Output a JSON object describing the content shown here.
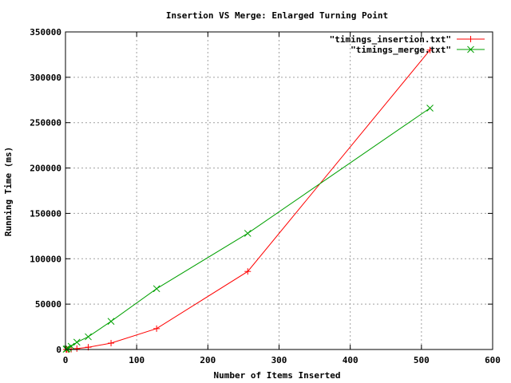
{
  "chart_data": {
    "type": "line",
    "title": "Insertion VS Merge: Enlarged Turning Point",
    "xlabel": "Number of Items Inserted",
    "ylabel": "Running Time (ms)",
    "xlim": [
      0,
      600
    ],
    "ylim": [
      0,
      350000
    ],
    "xticks": [
      0,
      100,
      200,
      300,
      400,
      500,
      600
    ],
    "yticks": [
      0,
      50000,
      100000,
      150000,
      200000,
      250000,
      300000,
      350000
    ],
    "grid": true,
    "legend_position": "top-right",
    "series": [
      {
        "name": "\"timings_insertion.txt\"",
        "color": "#ff0000",
        "marker": "plus",
        "x": [
          1,
          2,
          4,
          8,
          16,
          32,
          64,
          128,
          256,
          512
        ],
        "y": [
          0,
          100,
          150,
          300,
          1000,
          2500,
          7000,
          23000,
          86000,
          330000
        ]
      },
      {
        "name": "\"timings_merge.txt\"",
        "color": "#00a000",
        "marker": "cross",
        "x": [
          1,
          2,
          4,
          8,
          16,
          32,
          64,
          128,
          256,
          512
        ],
        "y": [
          300,
          800,
          1500,
          3500,
          8000,
          14000,
          31000,
          67000,
          128000,
          266000
        ]
      }
    ]
  }
}
